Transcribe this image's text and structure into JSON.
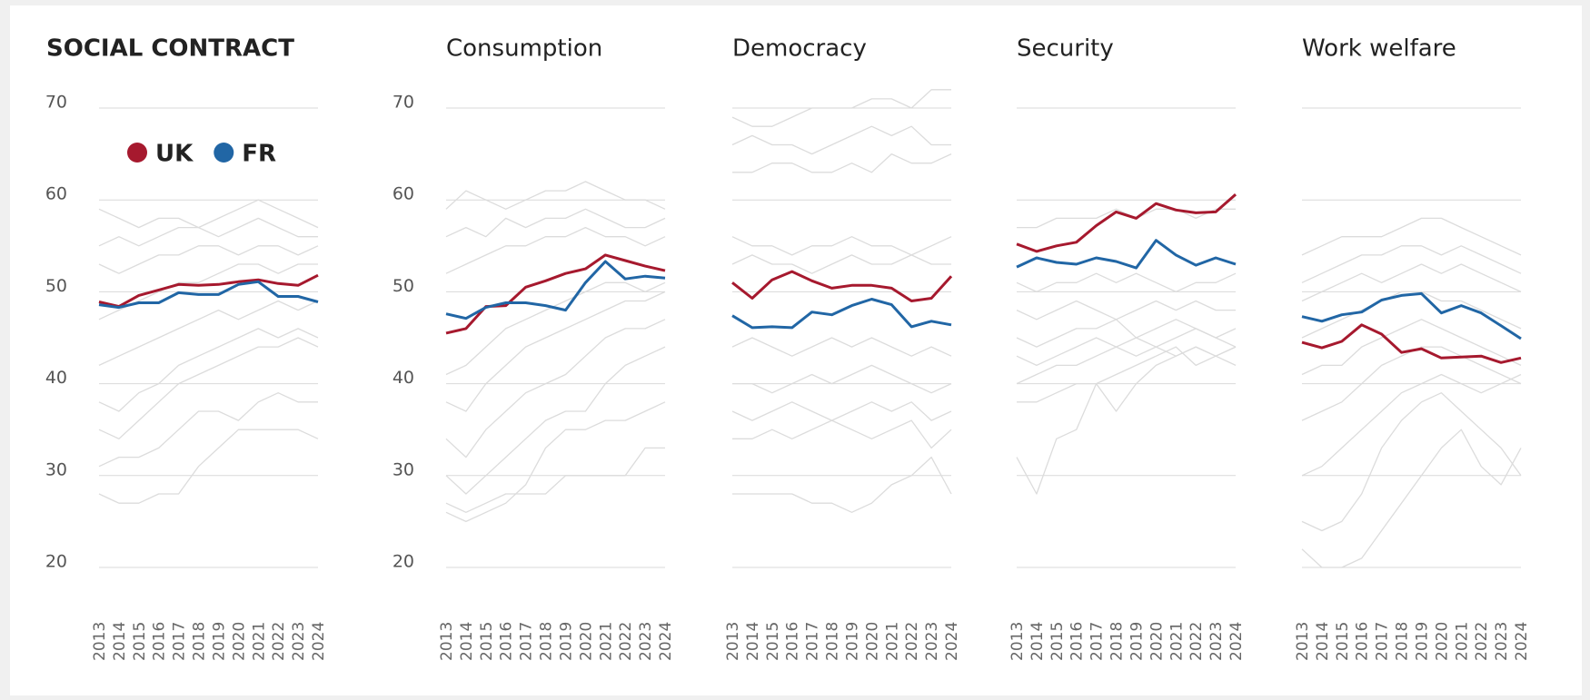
{
  "chart_data": [
    {
      "type": "line",
      "title": "SOCIAL CONTRACT",
      "categories": [
        "2013",
        "2014",
        "2015",
        "2016",
        "2017",
        "2018",
        "2019",
        "2020",
        "2021",
        "2022",
        "2023",
        "2024"
      ],
      "ylim": [
        20,
        70
      ],
      "yticks": [
        20,
        30,
        40,
        50,
        60,
        70
      ],
      "tick_labels": true,
      "grid": true,
      "legend": "upper left",
      "series": [
        {
          "color": "#dcdcdc",
          "values": [
            59,
            58,
            57,
            58,
            58,
            57,
            58,
            59,
            60,
            59,
            58,
            57
          ]
        },
        {
          "color": "#dcdcdc",
          "values": [
            55,
            56,
            55,
            56,
            57,
            57,
            56,
            57,
            58,
            57,
            56,
            56
          ]
        },
        {
          "color": "#dcdcdc",
          "values": [
            53,
            52,
            53,
            54,
            54,
            55,
            55,
            54,
            55,
            55,
            54,
            55
          ]
        },
        {
          "color": "#dcdcdc",
          "values": [
            47,
            48,
            49,
            50,
            51,
            51,
            52,
            53,
            53,
            52,
            53,
            53
          ]
        },
        {
          "color": "#dcdcdc",
          "values": [
            42,
            43,
            44,
            45,
            46,
            47,
            48,
            47,
            48,
            49,
            48,
            49
          ]
        },
        {
          "color": "#dcdcdc",
          "values": [
            38,
            37,
            39,
            40,
            42,
            43,
            44,
            45,
            46,
            45,
            46,
            45
          ]
        },
        {
          "color": "#dcdcdc",
          "values": [
            35,
            34,
            36,
            38,
            40,
            41,
            42,
            43,
            44,
            44,
            45,
            44
          ]
        },
        {
          "color": "#dcdcdc",
          "values": [
            31,
            32,
            32,
            33,
            35,
            37,
            37,
            36,
            38,
            39,
            38,
            38
          ]
        },
        {
          "color": "#dcdcdc",
          "values": [
            28,
            27,
            27,
            28,
            28,
            31,
            33,
            35,
            35,
            35,
            35,
            34
          ]
        },
        {
          "name": "UK",
          "color": "#a6192e",
          "values": [
            48.9,
            48.4,
            49.6,
            50.2,
            50.8,
            50.7,
            50.8,
            51.1,
            51.3,
            50.9,
            50.7,
            51.8
          ]
        },
        {
          "name": "FR",
          "color": "#2166a5",
          "values": [
            48.6,
            48.3,
            48.8,
            48.8,
            49.9,
            49.7,
            49.7,
            50.8,
            51.1,
            49.5,
            49.5,
            48.9
          ]
        }
      ]
    },
    {
      "type": "line",
      "title": "Consumption",
      "categories": [
        "2013",
        "2014",
        "2015",
        "2016",
        "2017",
        "2018",
        "2019",
        "2020",
        "2021",
        "2022",
        "2023",
        "2024"
      ],
      "ylim": [
        20,
        70
      ],
      "yticks": [
        20,
        30,
        40,
        50,
        60,
        70
      ],
      "tick_labels": true,
      "grid": true,
      "series": [
        {
          "color": "#dcdcdc",
          "values": [
            59,
            61,
            60,
            59,
            60,
            61,
            61,
            62,
            61,
            60,
            60,
            59
          ]
        },
        {
          "color": "#dcdcdc",
          "values": [
            56,
            57,
            56,
            58,
            57,
            58,
            58,
            59,
            58,
            57,
            57,
            58
          ]
        },
        {
          "color": "#dcdcdc",
          "values": [
            52,
            53,
            54,
            55,
            55,
            56,
            56,
            57,
            56,
            56,
            55,
            56
          ]
        },
        {
          "color": "#dcdcdc",
          "values": [
            41,
            42,
            44,
            46,
            47,
            48,
            49,
            50,
            51,
            51,
            50,
            51
          ]
        },
        {
          "color": "#dcdcdc",
          "values": [
            38,
            37,
            40,
            42,
            44,
            45,
            46,
            47,
            48,
            49,
            49,
            50
          ]
        },
        {
          "color": "#dcdcdc",
          "values": [
            34,
            32,
            35,
            37,
            39,
            40,
            41,
            43,
            45,
            46,
            46,
            47
          ]
        },
        {
          "color": "#dcdcdc",
          "values": [
            30,
            28,
            30,
            32,
            34,
            36,
            37,
            37,
            40,
            42,
            43,
            44
          ]
        },
        {
          "color": "#dcdcdc",
          "values": [
            26,
            25,
            26,
            27,
            29,
            33,
            35,
            35,
            36,
            36,
            37,
            38
          ]
        },
        {
          "color": "#dcdcdc",
          "values": [
            27,
            26,
            27,
            28,
            28,
            28,
            30,
            30,
            30,
            30,
            33,
            33
          ]
        },
        {
          "color": "#a6192e",
          "values": [
            45.5,
            46.0,
            48.4,
            48.5,
            50.5,
            51.2,
            52.0,
            52.5,
            54.0,
            53.4,
            52.8,
            52.3
          ]
        },
        {
          "color": "#2166a5",
          "values": [
            47.6,
            47.1,
            48.3,
            48.8,
            48.8,
            48.5,
            48.0,
            51.0,
            53.3,
            51.4,
            51.7,
            51.5
          ]
        }
      ]
    },
    {
      "type": "line",
      "title": "Democracy",
      "categories": [
        "2013",
        "2014",
        "2015",
        "2016",
        "2017",
        "2018",
        "2019",
        "2020",
        "2021",
        "2022",
        "2023",
        "2024"
      ],
      "ylim": [
        20,
        70
      ],
      "yticks": [
        20,
        30,
        40,
        50,
        60,
        70
      ],
      "tick_labels": false,
      "grid": true,
      "series": [
        {
          "color": "#dcdcdc",
          "values": [
            69,
            68,
            68,
            69,
            70,
            70,
            70,
            71,
            71,
            70,
            72,
            72
          ]
        },
        {
          "color": "#dcdcdc",
          "values": [
            66,
            67,
            66,
            66,
            65,
            66,
            67,
            68,
            67,
            68,
            66,
            66
          ]
        },
        {
          "color": "#dcdcdc",
          "values": [
            63,
            63,
            64,
            64,
            63,
            63,
            64,
            63,
            65,
            64,
            64,
            65
          ]
        },
        {
          "color": "#dcdcdc",
          "values": [
            56,
            55,
            55,
            54,
            55,
            55,
            56,
            55,
            55,
            54,
            55,
            56
          ]
        },
        {
          "color": "#dcdcdc",
          "values": [
            53,
            54,
            53,
            53,
            52,
            53,
            54,
            53,
            53,
            54,
            53,
            53
          ]
        },
        {
          "color": "#dcdcdc",
          "values": [
            44,
            45,
            44,
            43,
            44,
            45,
            44,
            45,
            44,
            43,
            44,
            43
          ]
        },
        {
          "color": "#dcdcdc",
          "values": [
            40,
            40,
            39,
            40,
            41,
            40,
            41,
            42,
            41,
            40,
            39,
            40
          ]
        },
        {
          "color": "#dcdcdc",
          "values": [
            37,
            36,
            37,
            38,
            37,
            36,
            37,
            38,
            37,
            38,
            36,
            37
          ]
        },
        {
          "color": "#dcdcdc",
          "values": [
            34,
            34,
            35,
            34,
            35,
            36,
            35,
            34,
            35,
            36,
            33,
            35
          ]
        },
        {
          "color": "#dcdcdc",
          "values": [
            28,
            28,
            28,
            28,
            27,
            27,
            26,
            27,
            29,
            30,
            32,
            28
          ]
        },
        {
          "color": "#a6192e",
          "values": [
            51.0,
            49.3,
            51.3,
            52.2,
            51.2,
            50.4,
            50.7,
            50.7,
            50.4,
            49.0,
            49.3,
            51.7
          ]
        },
        {
          "color": "#2166a5",
          "values": [
            47.4,
            46.1,
            46.2,
            46.1,
            47.8,
            47.5,
            48.5,
            49.2,
            48.6,
            46.2,
            46.8,
            46.4
          ]
        }
      ]
    },
    {
      "type": "line",
      "title": "Security",
      "categories": [
        "2013",
        "2014",
        "2015",
        "2016",
        "2017",
        "2018",
        "2019",
        "2020",
        "2021",
        "2022",
        "2023",
        "2024"
      ],
      "ylim": [
        20,
        70
      ],
      "yticks": [
        20,
        30,
        40,
        50,
        60,
        70
      ],
      "tick_labels": false,
      "grid": true,
      "series": [
        {
          "color": "#dcdcdc",
          "values": [
            57,
            57,
            58,
            58,
            58,
            59,
            58,
            59,
            59,
            58,
            59,
            59
          ]
        },
        {
          "color": "#dcdcdc",
          "values": [
            51,
            50,
            51,
            51,
            52,
            51,
            52,
            51,
            50,
            51,
            51,
            52
          ]
        },
        {
          "color": "#dcdcdc",
          "values": [
            48,
            47,
            48,
            49,
            48,
            47,
            48,
            49,
            48,
            49,
            48,
            48
          ]
        },
        {
          "color": "#dcdcdc",
          "values": [
            45,
            44,
            45,
            46,
            46,
            47,
            45,
            46,
            47,
            46,
            45,
            46
          ]
        },
        {
          "color": "#dcdcdc",
          "values": [
            43,
            42,
            43,
            44,
            45,
            44,
            45,
            44,
            45,
            46,
            45,
            44
          ]
        },
        {
          "color": "#dcdcdc",
          "values": [
            40,
            41,
            42,
            42,
            43,
            44,
            43,
            44,
            43,
            44,
            43,
            44
          ]
        },
        {
          "color": "#dcdcdc",
          "values": [
            38,
            38,
            39,
            40,
            40,
            37,
            40,
            42,
            43,
            44,
            43,
            44
          ]
        },
        {
          "color": "#dcdcdc",
          "values": [
            32,
            28,
            34,
            35,
            40,
            41,
            42,
            43,
            44,
            42,
            43,
            42
          ]
        },
        {
          "color": "#a6192e",
          "values": [
            55.2,
            54.4,
            55.0,
            55.4,
            57.2,
            58.7,
            58.0,
            59.6,
            58.9,
            58.6,
            58.7,
            60.6
          ]
        },
        {
          "color": "#2166a5",
          "values": [
            52.7,
            53.7,
            53.2,
            53.0,
            53.7,
            53.3,
            52.6,
            55.6,
            54.0,
            52.9,
            53.7,
            53.0
          ]
        }
      ]
    },
    {
      "type": "line",
      "title": "Work welfare",
      "categories": [
        "2013",
        "2014",
        "2015",
        "2016",
        "2017",
        "2018",
        "2019",
        "2020",
        "2021",
        "2022",
        "2023",
        "2024"
      ],
      "ylim": [
        20,
        70
      ],
      "yticks": [
        20,
        30,
        40,
        50,
        60,
        70
      ],
      "tick_labels": false,
      "grid": true,
      "series": [
        {
          "color": "#dcdcdc",
          "values": [
            54,
            55,
            56,
            56,
            56,
            57,
            58,
            58,
            57,
            56,
            55,
            54
          ]
        },
        {
          "color": "#dcdcdc",
          "values": [
            51,
            52,
            53,
            54,
            54,
            55,
            55,
            54,
            55,
            54,
            53,
            52
          ]
        },
        {
          "color": "#dcdcdc",
          "values": [
            49,
            50,
            51,
            52,
            51,
            52,
            53,
            52,
            53,
            52,
            51,
            50
          ]
        },
        {
          "color": "#dcdcdc",
          "values": [
            45,
            46,
            47,
            48,
            49,
            50,
            50,
            49,
            49,
            48,
            47,
            46
          ]
        },
        {
          "color": "#dcdcdc",
          "values": [
            41,
            42,
            42,
            44,
            45,
            46,
            47,
            46,
            45,
            44,
            43,
            42
          ]
        },
        {
          "color": "#dcdcdc",
          "values": [
            36,
            37,
            38,
            40,
            42,
            43,
            44,
            44,
            43,
            42,
            41,
            40
          ]
        },
        {
          "color": "#dcdcdc",
          "values": [
            30,
            31,
            33,
            35,
            37,
            39,
            40,
            41,
            40,
            39,
            40,
            41
          ]
        },
        {
          "color": "#dcdcdc",
          "values": [
            25,
            24,
            25,
            28,
            33,
            36,
            38,
            39,
            37,
            35,
            33,
            30
          ]
        },
        {
          "color": "#dcdcdc",
          "values": [
            22,
            20,
            20,
            21,
            24,
            27,
            30,
            33,
            35,
            31,
            29,
            33
          ]
        },
        {
          "color": "#a6192e",
          "values": [
            44.5,
            43.9,
            44.6,
            46.4,
            45.4,
            43.4,
            43.8,
            42.8,
            42.9,
            43.0,
            42.3,
            42.8
          ]
        },
        {
          "color": "#2166a5",
          "values": [
            47.3,
            46.8,
            47.5,
            47.8,
            49.1,
            49.6,
            49.8,
            47.7,
            48.5,
            47.7,
            46.3,
            44.9
          ]
        }
      ]
    }
  ]
}
